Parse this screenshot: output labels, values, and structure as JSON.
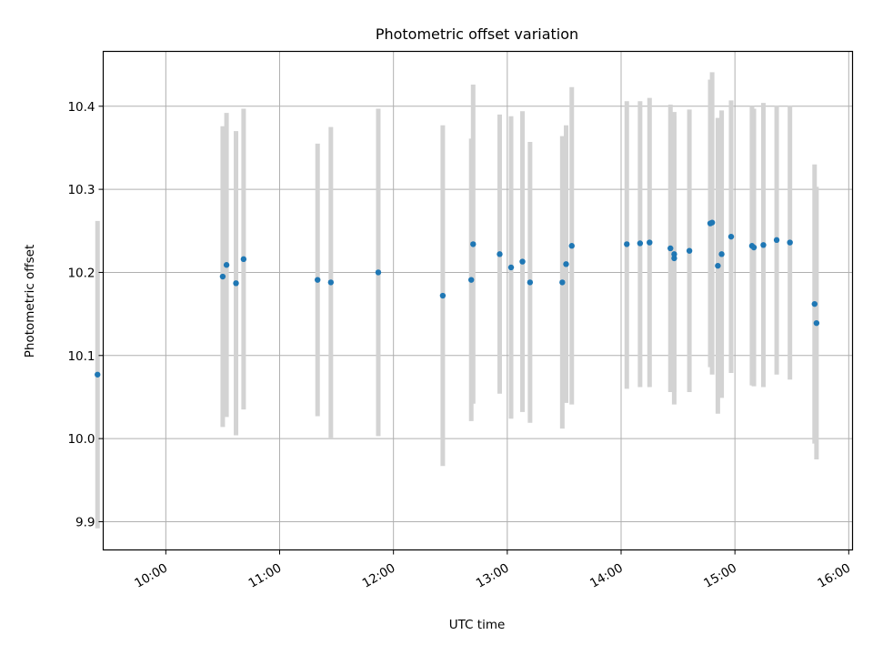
{
  "chart_data": {
    "type": "scatter",
    "title": "Photometric offset variation",
    "xlabel": "UTC time",
    "ylabel": "Photometric offset",
    "xlim": [
      "09:27",
      "16:02"
    ],
    "ylim": [
      9.866,
      10.466
    ],
    "xticks": [
      "10:00",
      "11:00",
      "12:00",
      "13:00",
      "14:00",
      "15:00",
      "16:00"
    ],
    "yticks": [
      9.9,
      10.0,
      10.1,
      10.2,
      10.3,
      10.4
    ],
    "grid": true,
    "colors": {
      "points": "#1f77b4",
      "errorbars": "#d3d3d3",
      "grid": "#b0b0b0",
      "axes": "#000000"
    },
    "points": [
      {
        "x": "09:24",
        "y": 10.077,
        "low": 9.892,
        "high": 10.262
      },
      {
        "x": "10:30",
        "y": 10.195,
        "low": 10.014,
        "high": 10.376
      },
      {
        "x": "10:32",
        "y": 10.209,
        "low": 10.026,
        "high": 10.392
      },
      {
        "x": "10:37",
        "y": 10.187,
        "low": 10.004,
        "high": 10.37
      },
      {
        "x": "10:41",
        "y": 10.216,
        "low": 10.035,
        "high": 10.397
      },
      {
        "x": "11:20",
        "y": 10.191,
        "low": 10.027,
        "high": 10.355
      },
      {
        "x": "11:27",
        "y": 10.188,
        "low": 10.001,
        "high": 10.375
      },
      {
        "x": "11:52",
        "y": 10.2,
        "low": 10.003,
        "high": 10.397
      },
      {
        "x": "12:26",
        "y": 10.172,
        "low": 9.967,
        "high": 10.377
      },
      {
        "x": "12:41",
        "y": 10.191,
        "low": 10.021,
        "high": 10.361
      },
      {
        "x": "12:42",
        "y": 10.234,
        "low": 10.042,
        "high": 10.426
      },
      {
        "x": "12:56",
        "y": 10.222,
        "low": 10.054,
        "high": 10.39
      },
      {
        "x": "13:02",
        "y": 10.206,
        "low": 10.024,
        "high": 10.388
      },
      {
        "x": "13:08",
        "y": 10.213,
        "low": 10.032,
        "high": 10.394
      },
      {
        "x": "13:12",
        "y": 10.188,
        "low": 10.019,
        "high": 10.357
      },
      {
        "x": "13:29",
        "y": 10.188,
        "low": 10.012,
        "high": 10.364
      },
      {
        "x": "13:31",
        "y": 10.21,
        "low": 10.043,
        "high": 10.377
      },
      {
        "x": "13:34",
        "y": 10.232,
        "low": 10.041,
        "high": 10.423
      },
      {
        "x": "14:03",
        "y": 10.234,
        "low": 10.06,
        "high": 10.406
      },
      {
        "x": "14:10",
        "y": 10.235,
        "low": 10.062,
        "high": 10.406
      },
      {
        "x": "14:15",
        "y": 10.236,
        "low": 10.062,
        "high": 10.41
      },
      {
        "x": "14:26",
        "y": 10.229,
        "low": 10.056,
        "high": 10.402
      },
      {
        "x": "14:28",
        "y": 10.217,
        "low": 10.041,
        "high": 10.393
      },
      {
        "x": "14:28",
        "y": 10.222,
        "low": 10.056,
        "high": 10.388
      },
      {
        "x": "14:36",
        "y": 10.226,
        "low": 10.056,
        "high": 10.396
      },
      {
        "x": "14:47",
        "y": 10.259,
        "low": 10.086,
        "high": 10.432
      },
      {
        "x": "14:48",
        "y": 10.26,
        "low": 10.077,
        "high": 10.441
      },
      {
        "x": "14:51",
        "y": 10.208,
        "low": 10.03,
        "high": 10.386
      },
      {
        "x": "14:53",
        "y": 10.222,
        "low": 10.049,
        "high": 10.395
      },
      {
        "x": "14:58",
        "y": 10.243,
        "low": 10.079,
        "high": 10.407
      },
      {
        "x": "15:09",
        "y": 10.232,
        "low": 10.064,
        "high": 10.4
      },
      {
        "x": "15:10",
        "y": 10.23,
        "low": 10.063,
        "high": 10.397
      },
      {
        "x": "15:15",
        "y": 10.233,
        "low": 10.062,
        "high": 10.404
      },
      {
        "x": "15:22",
        "y": 10.239,
        "low": 10.077,
        "high": 10.401
      },
      {
        "x": "15:29",
        "y": 10.236,
        "low": 10.071,
        "high": 10.401
      },
      {
        "x": "15:42",
        "y": 10.162,
        "low": 9.994,
        "high": 10.33
      },
      {
        "x": "15:43",
        "y": 10.139,
        "low": 9.975,
        "high": 10.303
      }
    ]
  }
}
